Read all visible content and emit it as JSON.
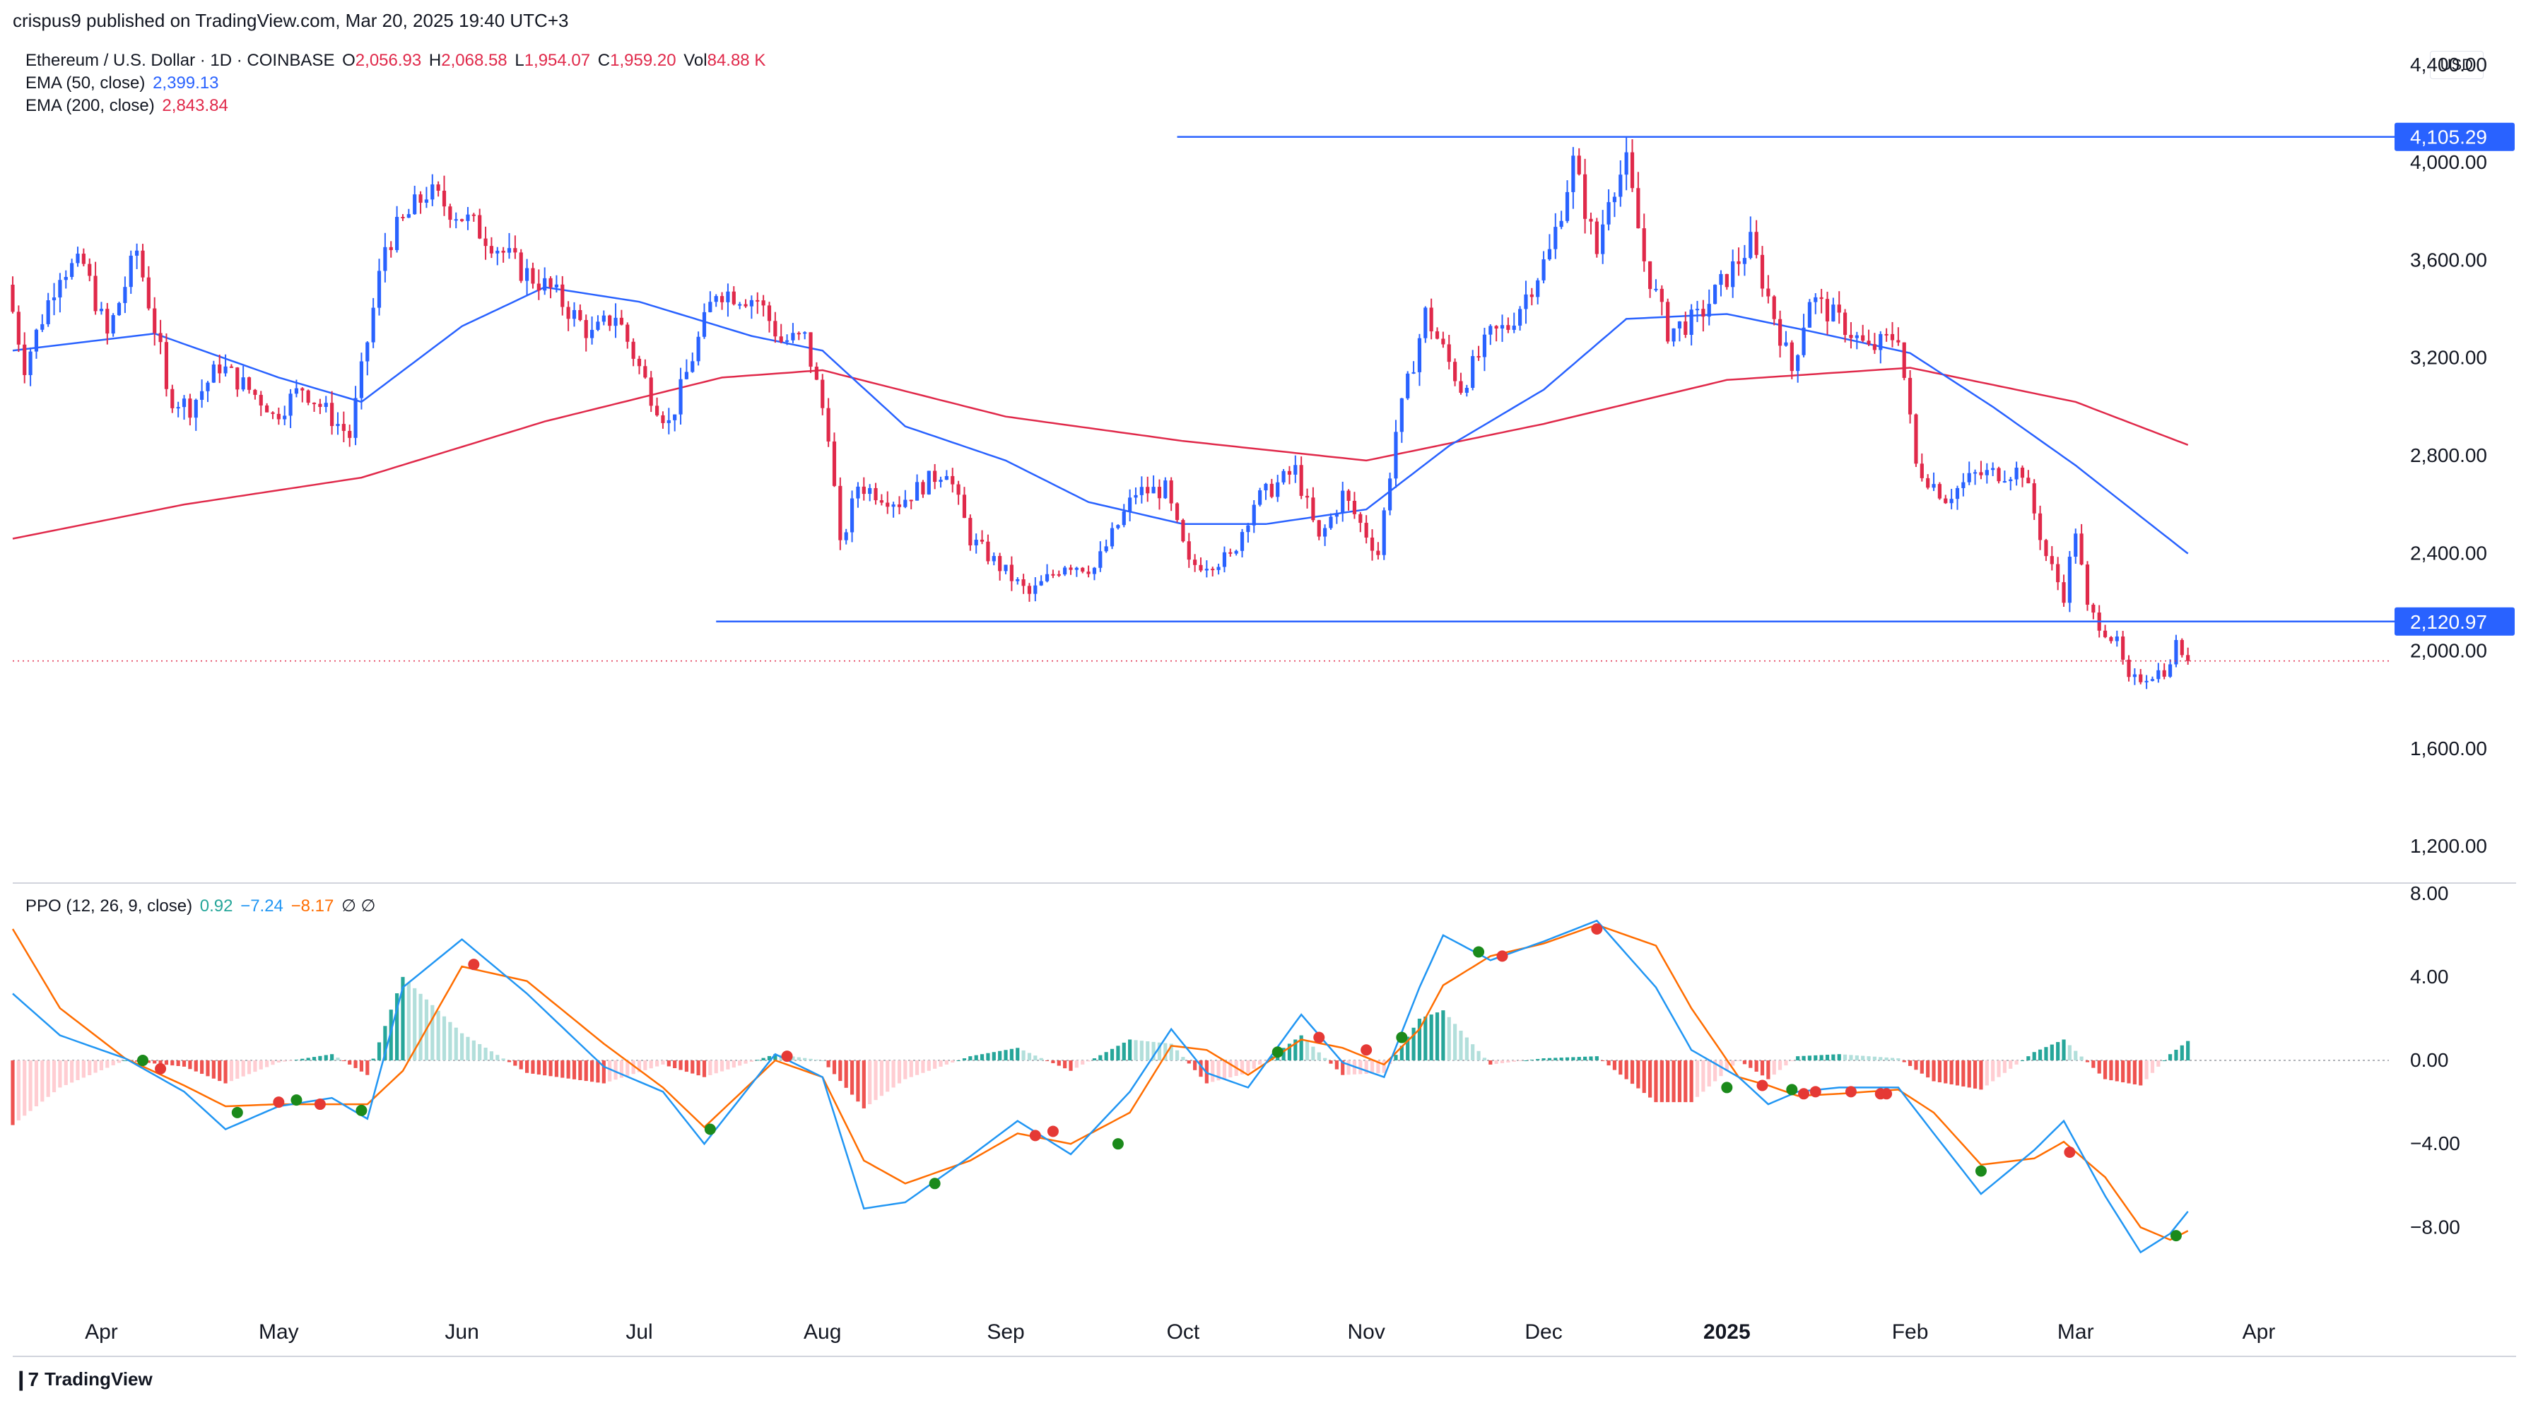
{
  "publisher": "crispus9 published on TradingView.com, Mar 20, 2025 19:40 UTC+3",
  "legend": {
    "symbol": "Ethereum / U.S. Dollar · 1D · COINBASE",
    "o_label": "O",
    "o": "2,056.93",
    "h_label": "H",
    "h": "2,068.58",
    "l_label": "L",
    "l": "1,954.07",
    "c_label": "C",
    "c": "1,959.20",
    "vol_label": "Vol",
    "vol": "84.88 K",
    "ema50_label": "EMA (50, close)",
    "ema50": "2,399.13",
    "ema200_label": "EMA (200, close)",
    "ema200": "2,843.84",
    "ppo_label": "PPO (12, 26, 9, close)",
    "ppo_hist": "0.92",
    "ppo_line": "−7.24",
    "ppo_signal": "−8.17",
    "ppo_extra": "∅ ∅"
  },
  "currency": "USD",
  "brand": "TradingView",
  "colors": {
    "up": "#2962ff",
    "down": "#e0294a",
    "ema50": "#2962ff",
    "ema200": "#e0294a",
    "ppo_line": "#2196f3",
    "ppo_signal": "#ff6d00",
    "hist_up_strong": "#26a69a",
    "hist_up_weak": "#b2dfdb",
    "hist_down_strong": "#ef5350",
    "hist_down_weak": "#ffcdd2",
    "hline": "#2962ff",
    "dot_green": "#1b8a1b",
    "dot_red": "#e53935"
  },
  "chart_data": [
    {
      "type": "candlestick",
      "title": "Ethereum / U.S. Dollar · 1D · COINBASE",
      "y_tick_labels": [
        "4,400.00",
        "4,000.00",
        "3,600.00",
        "3,200.00",
        "2,800.00",
        "2,400.00",
        "2,000.00",
        "1,600.00",
        "1,200.00"
      ],
      "y_ticks": [
        4400,
        4000,
        3600,
        3200,
        2800,
        2400,
        2000,
        1600,
        1200
      ],
      "x_tick_labels": [
        "Apr",
        "May",
        "Jun",
        "Jul",
        "Aug",
        "Sep",
        "Oct",
        "Nov",
        "Dec",
        "2025",
        "Feb",
        "Mar",
        "Apr"
      ],
      "x_tick_dates": [
        "2024-04-01",
        "2024-05-01",
        "2024-06-01",
        "2024-07-01",
        "2024-08-01",
        "2024-09-01",
        "2024-10-01",
        "2024-11-01",
        "2024-12-01",
        "2025-01-01",
        "2025-02-01",
        "2025-03-01",
        "2025-04-01"
      ],
      "x_range": [
        "2024-03-17",
        "2025-04-23"
      ],
      "ylim": [
        1050,
        4550
      ],
      "last_close": 1959.2,
      "horizontal_lines": [
        {
          "value": 4105.29,
          "label": "4,105.29",
          "start": "2024-09-30"
        },
        {
          "value": 2120.97,
          "label": "2,120.97",
          "start": "2024-07-14"
        }
      ],
      "price_anchors": [
        [
          "2024-03-17",
          3500
        ],
        [
          "2024-03-20",
          3170
        ],
        [
          "2024-03-26",
          3560
        ],
        [
          "2024-03-30",
          3580
        ],
        [
          "2024-04-03",
          3290
        ],
        [
          "2024-04-08",
          3640
        ],
        [
          "2024-04-12",
          3220
        ],
        [
          "2024-04-13",
          3050
        ],
        [
          "2024-04-17",
          3000
        ],
        [
          "2024-04-22",
          3170
        ],
        [
          "2024-04-30",
          3010
        ],
        [
          "2024-05-01",
          2960
        ],
        [
          "2024-05-06",
          3080
        ],
        [
          "2024-05-14",
          2880
        ],
        [
          "2024-05-20",
          3660
        ],
        [
          "2024-05-27",
          3880
        ],
        [
          "2024-06-02",
          3780
        ],
        [
          "2024-06-07",
          3680
        ],
        [
          "2024-06-12",
          3560
        ],
        [
          "2024-06-17",
          3480
        ],
        [
          "2024-06-24",
          3290
        ],
        [
          "2024-06-28",
          3380
        ],
        [
          "2024-07-04",
          3050
        ],
        [
          "2024-07-07",
          2930
        ],
        [
          "2024-07-15",
          3480
        ],
        [
          "2024-07-22",
          3440
        ],
        [
          "2024-07-26",
          3270
        ],
        [
          "2024-07-30",
          3280
        ],
        [
          "2024-08-03",
          2900
        ],
        [
          "2024-08-05",
          2420
        ],
        [
          "2024-08-08",
          2680
        ],
        [
          "2024-08-15",
          2610
        ],
        [
          "2024-08-23",
          2750
        ],
        [
          "2024-08-27",
          2460
        ],
        [
          "2024-09-06",
          2230
        ],
        [
          "2024-09-12",
          2360
        ],
        [
          "2024-09-17",
          2340
        ],
        [
          "2024-09-24",
          2650
        ],
        [
          "2024-09-29",
          2660
        ],
        [
          "2024-10-03",
          2350
        ],
        [
          "2024-10-10",
          2380
        ],
        [
          "2024-10-14",
          2610
        ],
        [
          "2024-10-21",
          2740
        ],
        [
          "2024-10-25",
          2450
        ],
        [
          "2024-10-29",
          2640
        ],
        [
          "2024-11-04",
          2400
        ],
        [
          "2024-11-07",
          2900
        ],
        [
          "2024-11-12",
          3380
        ],
        [
          "2024-11-18",
          3080
        ],
        [
          "2024-11-23",
          3290
        ],
        [
          "2024-11-26",
          3330
        ],
        [
          "2024-12-03",
          3630
        ],
        [
          "2024-12-07",
          4000
        ],
        [
          "2024-12-11",
          3630
        ],
        [
          "2024-12-13",
          3880
        ],
        [
          "2024-12-16",
          3990
        ],
        [
          "2024-12-19",
          3600
        ],
        [
          "2024-12-23",
          3310
        ],
        [
          "2024-12-28",
          3360
        ],
        [
          "2025-01-06",
          3670
        ],
        [
          "2025-01-13",
          3150
        ],
        [
          "2025-01-16",
          3450
        ],
        [
          "2025-01-22",
          3330
        ],
        [
          "2025-01-26",
          3230
        ],
        [
          "2025-01-31",
          3300
        ],
        [
          "2025-02-03",
          2760
        ],
        [
          "2025-02-08",
          2630
        ],
        [
          "2025-02-13",
          2720
        ],
        [
          "2025-02-21",
          2740
        ],
        [
          "2025-02-25",
          2390
        ],
        [
          "2025-02-28",
          2230
        ],
        [
          "2025-03-02",
          2500
        ],
        [
          "2025-03-04",
          2170
        ],
        [
          "2025-03-09",
          2030
        ],
        [
          "2025-03-11",
          1870
        ],
        [
          "2025-03-14",
          1900
        ],
        [
          "2025-03-18",
          1930
        ],
        [
          "2025-03-19",
          2060
        ],
        [
          "2025-03-20",
          1959
        ]
      ],
      "ema50_anchors": [
        [
          "2024-03-17",
          3230
        ],
        [
          "2024-04-10",
          3300
        ],
        [
          "2024-05-01",
          3120
        ],
        [
          "2024-05-15",
          3020
        ],
        [
          "2024-06-01",
          3330
        ],
        [
          "2024-06-15",
          3490
        ],
        [
          "2024-07-01",
          3430
        ],
        [
          "2024-07-20",
          3290
        ],
        [
          "2024-08-01",
          3230
        ],
        [
          "2024-08-15",
          2920
        ],
        [
          "2024-09-01",
          2780
        ],
        [
          "2024-09-15",
          2610
        ],
        [
          "2024-10-01",
          2520
        ],
        [
          "2024-10-15",
          2520
        ],
        [
          "2024-11-01",
          2580
        ],
        [
          "2024-11-15",
          2840
        ],
        [
          "2024-12-01",
          3070
        ],
        [
          "2024-12-15",
          3360
        ],
        [
          "2025-01-01",
          3380
        ],
        [
          "2025-01-15",
          3310
        ],
        [
          "2025-02-01",
          3220
        ],
        [
          "2025-02-15",
          3000
        ],
        [
          "2025-03-01",
          2760
        ],
        [
          "2025-03-20",
          2399
        ]
      ],
      "ema200_anchors": [
        [
          "2024-03-17",
          2460
        ],
        [
          "2024-04-15",
          2600
        ],
        [
          "2024-05-15",
          2710
        ],
        [
          "2024-06-15",
          2940
        ],
        [
          "2024-07-15",
          3120
        ],
        [
          "2024-08-01",
          3150
        ],
        [
          "2024-09-01",
          2960
        ],
        [
          "2024-10-01",
          2860
        ],
        [
          "2024-11-01",
          2780
        ],
        [
          "2024-12-01",
          2930
        ],
        [
          "2025-01-01",
          3110
        ],
        [
          "2025-02-01",
          3160
        ],
        [
          "2025-03-01",
          3020
        ],
        [
          "2025-03-20",
          2844
        ]
      ]
    },
    {
      "type": "line",
      "title": "PPO (12, 26, 9, close)",
      "y_tick_labels": [
        "8.00",
        "4.00",
        "0.00",
        "−4.00",
        "−8.00"
      ],
      "y_ticks": [
        8,
        4,
        0,
        -4,
        -8
      ],
      "ylim": [
        -10.8,
        8.5
      ],
      "series": [
        {
          "name": "PPO",
          "anchors": [
            [
              "2024-03-17",
              3.2
            ],
            [
              "2024-03-25",
              1.2
            ],
            [
              "2024-04-05",
              0.1
            ],
            [
              "2024-04-15",
              -1.5
            ],
            [
              "2024-04-22",
              -3.3
            ],
            [
              "2024-05-01",
              -2.2
            ],
            [
              "2024-05-10",
              -1.8
            ],
            [
              "2024-05-16",
              -2.8
            ],
            [
              "2024-05-22",
              3.5
            ],
            [
              "2024-06-01",
              5.8
            ],
            [
              "2024-06-12",
              3.2
            ],
            [
              "2024-06-25",
              -0.3
            ],
            [
              "2024-07-05",
              -1.5
            ],
            [
              "2024-07-12",
              -4.0
            ],
            [
              "2024-07-24",
              0.3
            ],
            [
              "2024-08-01",
              -0.8
            ],
            [
              "2024-08-08",
              -7.1
            ],
            [
              "2024-08-15",
              -6.8
            ],
            [
              "2024-08-26",
              -4.6
            ],
            [
              "2024-09-03",
              -2.9
            ],
            [
              "2024-09-12",
              -4.5
            ],
            [
              "2024-09-22",
              -1.5
            ],
            [
              "2024-09-29",
              1.5
            ],
            [
              "2024-10-05",
              -0.6
            ],
            [
              "2024-10-12",
              -1.3
            ],
            [
              "2024-10-21",
              2.2
            ],
            [
              "2024-10-28",
              -0.1
            ],
            [
              "2024-11-04",
              -0.8
            ],
            [
              "2024-11-10",
              3.5
            ],
            [
              "2024-11-14",
              6.0
            ],
            [
              "2024-11-22",
              4.8
            ],
            [
              "2024-12-01",
              5.7
            ],
            [
              "2024-12-10",
              6.7
            ],
            [
              "2024-12-20",
              3.5
            ],
            [
              "2024-12-26",
              0.5
            ],
            [
              "2025-01-03",
              -0.8
            ],
            [
              "2025-01-08",
              -2.1
            ],
            [
              "2025-01-13",
              -1.5
            ],
            [
              "2025-01-20",
              -1.3
            ],
            [
              "2025-01-30",
              -1.3
            ],
            [
              "2025-02-05",
              -3.5
            ],
            [
              "2025-02-13",
              -6.4
            ],
            [
              "2025-02-22",
              -4.3
            ],
            [
              "2025-02-27",
              -2.9
            ],
            [
              "2025-03-06",
              -6.5
            ],
            [
              "2025-03-12",
              -9.2
            ],
            [
              "2025-03-17",
              -8.3
            ],
            [
              "2025-03-20",
              -7.24
            ]
          ]
        },
        {
          "name": "Signal",
          "anchors": [
            [
              "2024-03-17",
              6.3
            ],
            [
              "2024-03-25",
              2.5
            ],
            [
              "2024-04-05",
              0.1
            ],
            [
              "2024-04-15",
              -1.2
            ],
            [
              "2024-04-22",
              -2.2
            ],
            [
              "2024-05-01",
              -2.1
            ],
            [
              "2024-05-16",
              -2.1
            ],
            [
              "2024-05-22",
              -0.5
            ],
            [
              "2024-06-01",
              4.5
            ],
            [
              "2024-06-12",
              3.8
            ],
            [
              "2024-06-25",
              0.8
            ],
            [
              "2024-07-05",
              -1.3
            ],
            [
              "2024-07-12",
              -3.2
            ],
            [
              "2024-07-24",
              0.0
            ],
            [
              "2024-08-01",
              -0.8
            ],
            [
              "2024-08-08",
              -4.8
            ],
            [
              "2024-08-15",
              -5.9
            ],
            [
              "2024-08-26",
              -4.8
            ],
            [
              "2024-09-03",
              -3.5
            ],
            [
              "2024-09-12",
              -4.0
            ],
            [
              "2024-09-22",
              -2.5
            ],
            [
              "2024-09-29",
              0.7
            ],
            [
              "2024-10-05",
              0.5
            ],
            [
              "2024-10-12",
              -0.7
            ],
            [
              "2024-10-21",
              1.0
            ],
            [
              "2024-10-28",
              0.6
            ],
            [
              "2024-11-04",
              -0.2
            ],
            [
              "2024-11-10",
              1.5
            ],
            [
              "2024-11-14",
              3.6
            ],
            [
              "2024-11-22",
              5.0
            ],
            [
              "2024-12-01",
              5.6
            ],
            [
              "2024-12-10",
              6.5
            ],
            [
              "2024-12-20",
              5.5
            ],
            [
              "2024-12-26",
              2.5
            ],
            [
              "2025-01-03",
              -0.8
            ],
            [
              "2025-01-08",
              -1.2
            ],
            [
              "2025-01-13",
              -1.7
            ],
            [
              "2025-01-20",
              -1.6
            ],
            [
              "2025-01-30",
              -1.4
            ],
            [
              "2025-02-05",
              -2.5
            ],
            [
              "2025-02-13",
              -5.0
            ],
            [
              "2025-02-22",
              -4.7
            ],
            [
              "2025-02-27",
              -3.9
            ],
            [
              "2025-03-06",
              -5.6
            ],
            [
              "2025-03-12",
              -8.0
            ],
            [
              "2025-03-17",
              -8.6
            ],
            [
              "2025-03-20",
              -8.17
            ]
          ]
        }
      ],
      "cross_dots": [
        [
          "2024-04-08",
          0.0,
          "green"
        ],
        [
          "2024-04-11",
          -0.4,
          "red"
        ],
        [
          "2024-04-24",
          -2.5,
          "green"
        ],
        [
          "2024-05-01",
          -2.0,
          "red"
        ],
        [
          "2024-05-04",
          -1.9,
          "green"
        ],
        [
          "2024-05-08",
          -2.1,
          "red"
        ],
        [
          "2024-05-15",
          -2.4,
          "green"
        ],
        [
          "2024-06-03",
          4.6,
          "red"
        ],
        [
          "2024-07-13",
          -3.3,
          "green"
        ],
        [
          "2024-07-26",
          0.2,
          "red"
        ],
        [
          "2024-08-20",
          -5.9,
          "green"
        ],
        [
          "2024-09-06",
          -3.6,
          "red"
        ],
        [
          "2024-09-09",
          -3.4,
          "red"
        ],
        [
          "2024-09-20",
          -4.0,
          "green"
        ],
        [
          "2024-10-17",
          0.4,
          "green"
        ],
        [
          "2024-10-24",
          1.1,
          "red"
        ],
        [
          "2024-11-01",
          0.5,
          "red"
        ],
        [
          "2024-11-07",
          1.1,
          "green"
        ],
        [
          "2024-11-20",
          5.2,
          "green"
        ],
        [
          "2024-11-24",
          5.0,
          "red"
        ],
        [
          "2024-12-10",
          6.3,
          "red"
        ],
        [
          "2025-01-01",
          -1.3,
          "green"
        ],
        [
          "2025-01-07",
          -1.2,
          "red"
        ],
        [
          "2025-01-12",
          -1.4,
          "green"
        ],
        [
          "2025-01-14",
          -1.6,
          "red"
        ],
        [
          "2025-01-16",
          -1.5,
          "red"
        ],
        [
          "2025-01-22",
          -1.5,
          "red"
        ],
        [
          "2025-01-27",
          -1.6,
          "red"
        ],
        [
          "2025-01-28",
          -1.6,
          "red"
        ],
        [
          "2025-02-13",
          -5.3,
          "green"
        ],
        [
          "2025-02-28",
          -4.4,
          "red"
        ],
        [
          "2025-03-18",
          -8.4,
          "green"
        ]
      ]
    }
  ]
}
